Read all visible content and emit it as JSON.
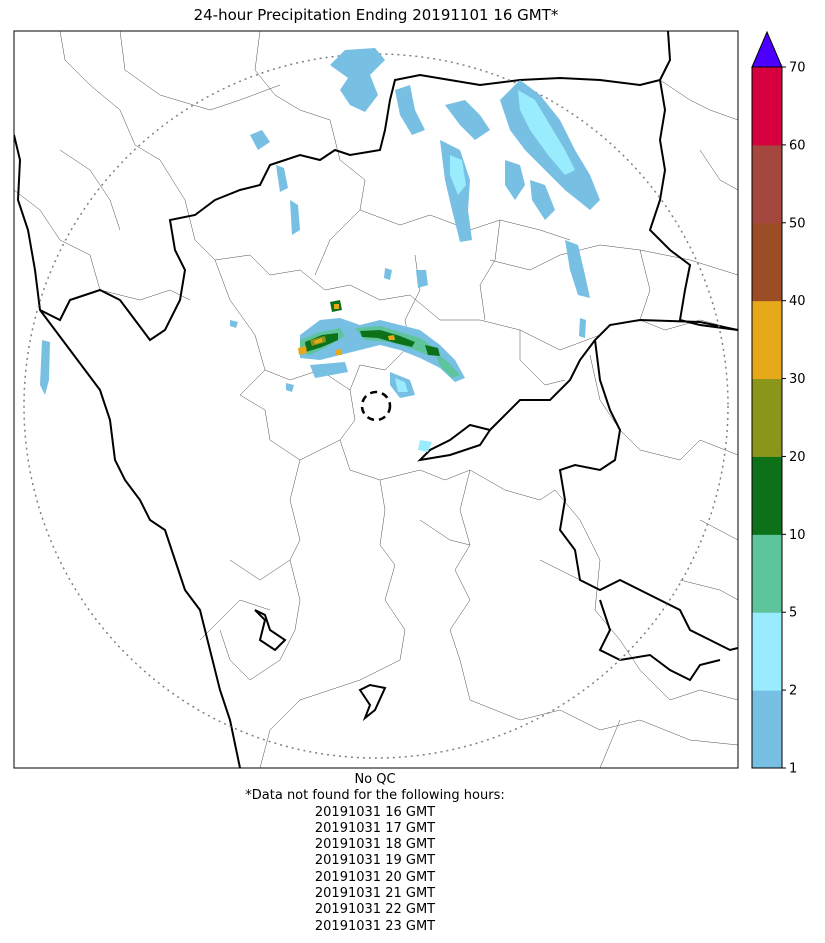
{
  "title": "24-hour Precipitation Ending 20191101 16 GMT*",
  "colorbar": {
    "ticks": [
      "1",
      "2",
      "5",
      "10",
      "20",
      "30",
      "40",
      "50",
      "60",
      "70"
    ],
    "colors": [
      "#77bfe3",
      "#98ecfd",
      "#5dc49b",
      "#0c7119",
      "#8a961a",
      "#e6a91a",
      "#9d4d26",
      "#a4473f",
      "#d6003f"
    ],
    "extend_color": "#4b00ff"
  },
  "footer": {
    "qc": "No QC",
    "missing_note": "*Data not found for the following hours:",
    "missing_hours": [
      "20191031 16 GMT",
      "20191031 17 GMT",
      "20191031 18 GMT",
      "20191031 19 GMT",
      "20191031 20 GMT",
      "20191031 21 GMT",
      "20191031 22 GMT",
      "20191031 23 GMT"
    ]
  }
}
